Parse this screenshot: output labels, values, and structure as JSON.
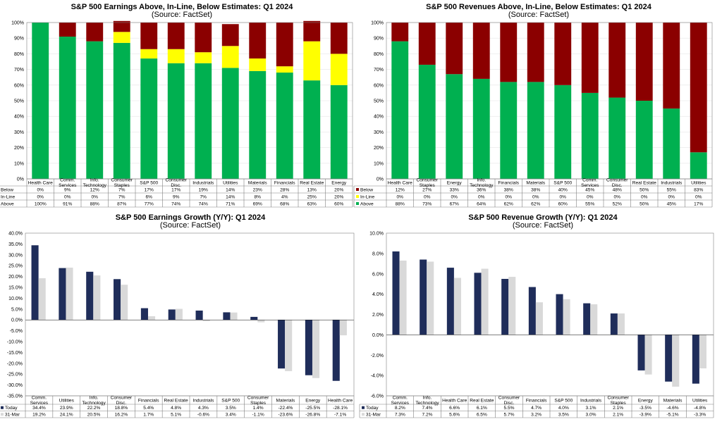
{
  "colors": {
    "below": "#8b0000",
    "inline": "#ffff00",
    "above": "#00b050",
    "today": "#1f2d5a",
    "prior": "#d9d9d9"
  },
  "chart_data": [
    {
      "id": "earnings-surprise",
      "type": "bar",
      "stacked": true,
      "title": "S&P 500 Earnings Above, In-Line, Below Estimates: Q1 2024",
      "subtitle": "(Source: FactSet)",
      "categories": [
        "Health Care",
        "Comm. Services",
        "Info. Technology",
        "Consumer Staples",
        "S&P 500",
        "Consumer Disc.",
        "Industrials",
        "Utilities",
        "Materials",
        "Financials",
        "Real Estate",
        "Energy"
      ],
      "series": [
        {
          "name": "Below",
          "values": [
            0,
            9,
            12,
            7,
            17,
            17,
            19,
            14,
            23,
            28,
            13,
            20
          ]
        },
        {
          "name": "In-Line",
          "values": [
            0,
            0,
            0,
            7,
            6,
            9,
            7,
            14,
            8,
            4,
            25,
            20
          ]
        },
        {
          "name": "Above",
          "values": [
            100,
            91,
            88,
            87,
            77,
            74,
            74,
            71,
            69,
            68,
            63,
            60
          ]
        }
      ],
      "ylim": [
        0,
        100
      ],
      "yticks": [
        "0%",
        "10%",
        "20%",
        "30%",
        "40%",
        "50%",
        "60%",
        "70%",
        "80%",
        "90%",
        "100%"
      ],
      "value_suffix": "%",
      "legend": "table-below"
    },
    {
      "id": "revenue-surprise",
      "type": "bar",
      "stacked": true,
      "title": "S&P 500 Revenues Above, In-Line, Below Estimates: Q1 2024",
      "subtitle": "(Source: FactSet)",
      "categories": [
        "Health Care",
        "Consumer Staples",
        "Energy",
        "Info. Technology",
        "Financials",
        "Materials",
        "S&P 500",
        "Comm. Services",
        "Consumer Disc.",
        "Real Estate",
        "Industrials",
        "Utilities"
      ],
      "series": [
        {
          "name": "Below",
          "values": [
            12,
            27,
            33,
            36,
            38,
            38,
            40,
            45,
            48,
            50,
            55,
            83
          ]
        },
        {
          "name": "In-Line",
          "values": [
            0,
            0,
            0,
            0,
            0,
            0,
            0,
            0,
            0,
            0,
            0,
            0
          ]
        },
        {
          "name": "Above",
          "values": [
            88,
            73,
            67,
            64,
            62,
            62,
            60,
            55,
            52,
            50,
            45,
            17
          ]
        }
      ],
      "ylim": [
        0,
        100
      ],
      "yticks": [
        "0%",
        "10%",
        "20%",
        "30%",
        "40%",
        "50%",
        "60%",
        "70%",
        "80%",
        "90%",
        "100%"
      ],
      "value_suffix": "%",
      "legend": "table-below"
    },
    {
      "id": "earnings-growth",
      "type": "bar",
      "stacked": false,
      "title": "S&P 500 Earnings Growth (Y/Y): Q1 2024",
      "subtitle": "(Source: FactSet)",
      "categories": [
        "Comm. Services",
        "Utilities",
        "Info. Technology",
        "Consumer Disc.",
        "Financials",
        "Real Estate",
        "Industrials",
        "S&P 500",
        "Consumer Staples",
        "Materials",
        "Energy",
        "Health Care"
      ],
      "series": [
        {
          "name": "Today",
          "values": [
            34.4,
            23.9,
            22.2,
            18.8,
            5.4,
            4.8,
            4.3,
            3.5,
            1.4,
            -22.4,
            -25.5,
            -28.1
          ]
        },
        {
          "name": "31-Mar",
          "values": [
            19.2,
            24.1,
            20.5,
            16.2,
            1.7,
            5.1,
            -0.6,
            3.4,
            -1.1,
            -23.6,
            -26.8,
            -7.1
          ]
        }
      ],
      "ylim": [
        -35,
        40
      ],
      "yticks": [
        "-35.0%",
        "-30.0%",
        "-25.0%",
        "-20.0%",
        "-15.0%",
        "-10.0%",
        "-5.0%",
        "0.0%",
        "5.0%",
        "10.0%",
        "15.0%",
        "20.0%",
        "25.0%",
        "30.0%",
        "35.0%",
        "40.0%"
      ],
      "value_suffix": "%",
      "legend": "table-below"
    },
    {
      "id": "revenue-growth",
      "type": "bar",
      "stacked": false,
      "title": "S&P 500 Revenue Growth (Y/Y): Q1 2024",
      "subtitle": "(Source: FactSet)",
      "categories": [
        "Comm. Services",
        "Info. Technology",
        "Health Care",
        "Real Estate",
        "Consumer Disc.",
        "Financials",
        "S&P 500",
        "Industrials",
        "Consumer Staples",
        "Energy",
        "Materials",
        "Utilities"
      ],
      "series": [
        {
          "name": "Today",
          "values": [
            8.2,
            7.4,
            6.6,
            6.1,
            5.5,
            4.7,
            4.0,
            3.1,
            2.1,
            -3.5,
            -4.6,
            -4.8
          ]
        },
        {
          "name": "31-Mar",
          "values": [
            7.3,
            7.2,
            5.6,
            6.5,
            5.7,
            3.2,
            3.5,
            3.0,
            2.1,
            -3.9,
            -5.1,
            -3.3
          ]
        }
      ],
      "ylim": [
        -6,
        10
      ],
      "yticks": [
        "-6.0%",
        "-4.0%",
        "-2.0%",
        "0.0%",
        "2.0%",
        "4.0%",
        "6.0%",
        "8.0%",
        "10.0%"
      ],
      "value_suffix": "%",
      "legend": "table-below"
    }
  ]
}
